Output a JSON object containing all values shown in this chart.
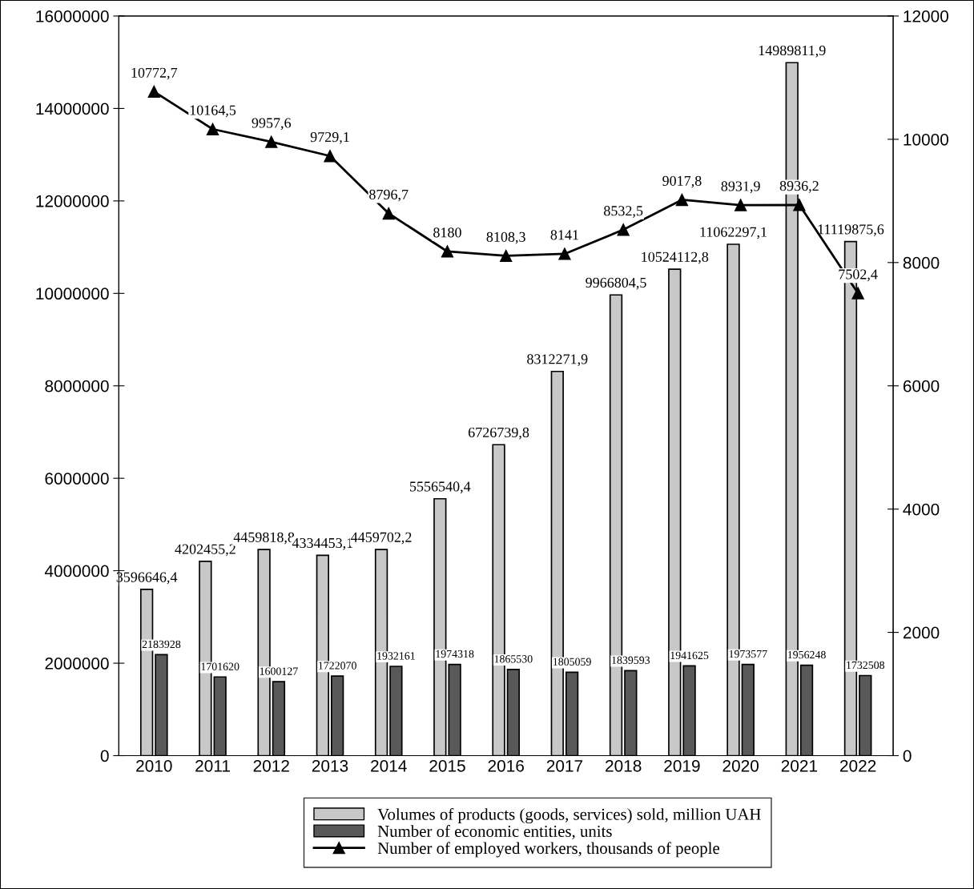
{
  "chart_data": {
    "type": "bar",
    "categories": [
      "2010",
      "2011",
      "2012",
      "2013",
      "2014",
      "2015",
      "2016",
      "2017",
      "2018",
      "2019",
      "2020",
      "2021",
      "2022"
    ],
    "series": [
      {
        "name": "Volumes of products (goods, services) sold, million UAH",
        "color": "#c8c8c8",
        "values": [
          3596646.4,
          4202455.2,
          4459818.8,
          4334453.1,
          4459702.2,
          5556540.4,
          6726739.8,
          8312271.9,
          9966804.5,
          10524112.8,
          11062297.1,
          14989811.9,
          11119875.6
        ],
        "value_labels": [
          "3596646,4",
          "4202455,2",
          "4459818,8",
          "4334453,1",
          "4459702,2",
          "5556540,4",
          "6726739,8",
          "8312271,9",
          "9966804,5",
          "10524112,8",
          "11062297,1",
          "14989811,9",
          "11119875,6"
        ]
      },
      {
        "name": "Number of economic entities, units",
        "color": "#595959",
        "values": [
          2183928,
          1701620,
          1600127,
          1722070,
          1932161,
          1974318,
          1865530,
          1805059,
          1839593,
          1941625,
          1973577,
          1956248,
          1732508
        ],
        "value_labels": [
          "2183928",
          "1701620",
          "1600127",
          "1722070",
          "1932161",
          "1974318",
          "1865530",
          "1805059",
          "1839593",
          "1941625",
          "1973577",
          "1956248",
          "1732508"
        ]
      },
      {
        "name": "Number of employed workers, thousands of people",
        "type": "line",
        "axis": "y2",
        "color": "#000000",
        "marker": "triangle",
        "values": [
          10772.7,
          10164.5,
          9957.6,
          9729.1,
          8796.7,
          8180,
          8108.3,
          8141,
          8532.5,
          9017.8,
          8931.9,
          8936.2,
          7502.4
        ],
        "value_labels": [
          "10772,7",
          "10164,5",
          "9957,6",
          "9729,1",
          "8796,7",
          "8180",
          "8108,3",
          "8141",
          "8532,5",
          "9017,8",
          "8931,9",
          "8936,2",
          "7502,4"
        ]
      }
    ],
    "ylim": [
      0,
      16000000
    ],
    "yticks": [
      0,
      2000000,
      4000000,
      6000000,
      8000000,
      10000000,
      12000000,
      14000000,
      16000000
    ],
    "y2lim": [
      0,
      12000
    ],
    "y2ticks": [
      0,
      2000,
      4000,
      6000,
      8000,
      10000,
      12000
    ],
    "grid": false,
    "legend": "bottom",
    "line_style": "solid"
  }
}
